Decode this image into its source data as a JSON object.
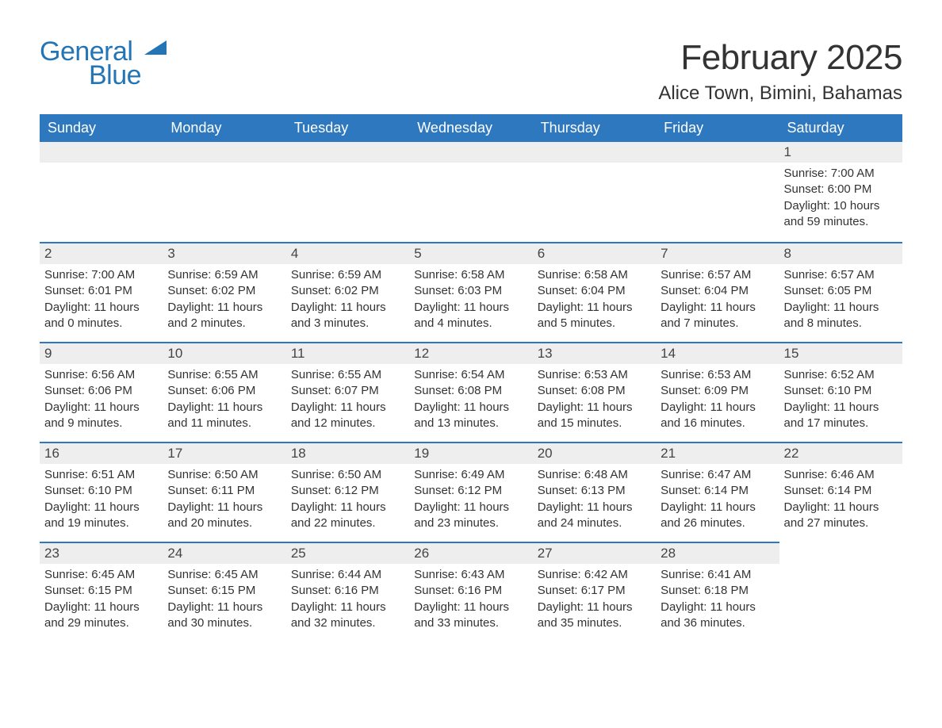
{
  "logo": {
    "general": "General",
    "blue": "Blue",
    "accent_color": "#2475b5"
  },
  "header": {
    "month_title": "February 2025",
    "location": "Alice Town, Bimini, Bahamas"
  },
  "calendar": {
    "header_bg": "#2e78bf",
    "header_text": "#ffffff",
    "row_accent": "#2e78bf",
    "daynum_bg": "#eeeeee",
    "days_of_week": [
      "Sunday",
      "Monday",
      "Tuesday",
      "Wednesday",
      "Thursday",
      "Friday",
      "Saturday"
    ],
    "first_day_column": 6,
    "days": [
      {
        "n": 1,
        "sunrise": "7:00 AM",
        "sunset": "6:00 PM",
        "daylight": "10 hours and 59 minutes."
      },
      {
        "n": 2,
        "sunrise": "7:00 AM",
        "sunset": "6:01 PM",
        "daylight": "11 hours and 0 minutes."
      },
      {
        "n": 3,
        "sunrise": "6:59 AM",
        "sunset": "6:02 PM",
        "daylight": "11 hours and 2 minutes."
      },
      {
        "n": 4,
        "sunrise": "6:59 AM",
        "sunset": "6:02 PM",
        "daylight": "11 hours and 3 minutes."
      },
      {
        "n": 5,
        "sunrise": "6:58 AM",
        "sunset": "6:03 PM",
        "daylight": "11 hours and 4 minutes."
      },
      {
        "n": 6,
        "sunrise": "6:58 AM",
        "sunset": "6:04 PM",
        "daylight": "11 hours and 5 minutes."
      },
      {
        "n": 7,
        "sunrise": "6:57 AM",
        "sunset": "6:04 PM",
        "daylight": "11 hours and 7 minutes."
      },
      {
        "n": 8,
        "sunrise": "6:57 AM",
        "sunset": "6:05 PM",
        "daylight": "11 hours and 8 minutes."
      },
      {
        "n": 9,
        "sunrise": "6:56 AM",
        "sunset": "6:06 PM",
        "daylight": "11 hours and 9 minutes."
      },
      {
        "n": 10,
        "sunrise": "6:55 AM",
        "sunset": "6:06 PM",
        "daylight": "11 hours and 11 minutes."
      },
      {
        "n": 11,
        "sunrise": "6:55 AM",
        "sunset": "6:07 PM",
        "daylight": "11 hours and 12 minutes."
      },
      {
        "n": 12,
        "sunrise": "6:54 AM",
        "sunset": "6:08 PM",
        "daylight": "11 hours and 13 minutes."
      },
      {
        "n": 13,
        "sunrise": "6:53 AM",
        "sunset": "6:08 PM",
        "daylight": "11 hours and 15 minutes."
      },
      {
        "n": 14,
        "sunrise": "6:53 AM",
        "sunset": "6:09 PM",
        "daylight": "11 hours and 16 minutes."
      },
      {
        "n": 15,
        "sunrise": "6:52 AM",
        "sunset": "6:10 PM",
        "daylight": "11 hours and 17 minutes."
      },
      {
        "n": 16,
        "sunrise": "6:51 AM",
        "sunset": "6:10 PM",
        "daylight": "11 hours and 19 minutes."
      },
      {
        "n": 17,
        "sunrise": "6:50 AM",
        "sunset": "6:11 PM",
        "daylight": "11 hours and 20 minutes."
      },
      {
        "n": 18,
        "sunrise": "6:50 AM",
        "sunset": "6:12 PM",
        "daylight": "11 hours and 22 minutes."
      },
      {
        "n": 19,
        "sunrise": "6:49 AM",
        "sunset": "6:12 PM",
        "daylight": "11 hours and 23 minutes."
      },
      {
        "n": 20,
        "sunrise": "6:48 AM",
        "sunset": "6:13 PM",
        "daylight": "11 hours and 24 minutes."
      },
      {
        "n": 21,
        "sunrise": "6:47 AM",
        "sunset": "6:14 PM",
        "daylight": "11 hours and 26 minutes."
      },
      {
        "n": 22,
        "sunrise": "6:46 AM",
        "sunset": "6:14 PM",
        "daylight": "11 hours and 27 minutes."
      },
      {
        "n": 23,
        "sunrise": "6:45 AM",
        "sunset": "6:15 PM",
        "daylight": "11 hours and 29 minutes."
      },
      {
        "n": 24,
        "sunrise": "6:45 AM",
        "sunset": "6:15 PM",
        "daylight": "11 hours and 30 minutes."
      },
      {
        "n": 25,
        "sunrise": "6:44 AM",
        "sunset": "6:16 PM",
        "daylight": "11 hours and 32 minutes."
      },
      {
        "n": 26,
        "sunrise": "6:43 AM",
        "sunset": "6:16 PM",
        "daylight": "11 hours and 33 minutes."
      },
      {
        "n": 27,
        "sunrise": "6:42 AM",
        "sunset": "6:17 PM",
        "daylight": "11 hours and 35 minutes."
      },
      {
        "n": 28,
        "sunrise": "6:41 AM",
        "sunset": "6:18 PM",
        "daylight": "11 hours and 36 minutes."
      }
    ],
    "labels": {
      "sunrise": "Sunrise:",
      "sunset": "Sunset:",
      "daylight": "Daylight:"
    }
  }
}
